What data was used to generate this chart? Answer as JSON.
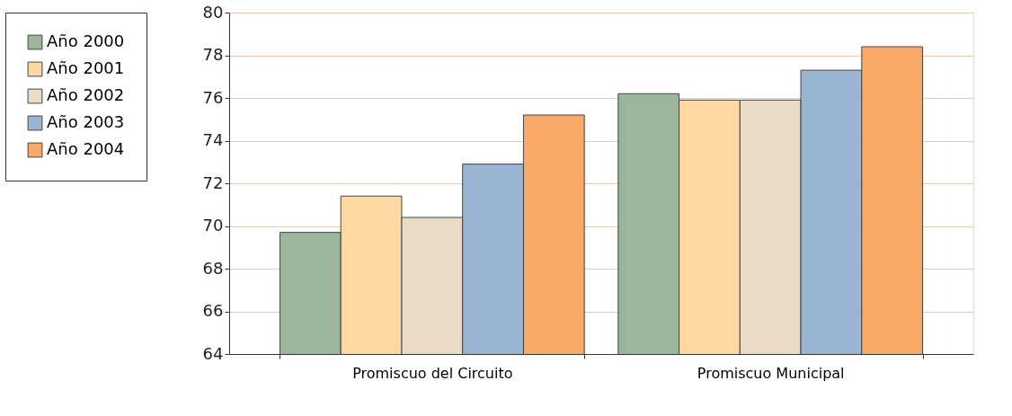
{
  "chart_data": {
    "type": "bar",
    "categories": [
      "Promiscuo del Circuito",
      "Promiscuo Municipal"
    ],
    "series": [
      {
        "name": "Año 2000",
        "color": "#9db59b",
        "values": [
          69.7,
          76.2
        ]
      },
      {
        "name": "Año 2001",
        "color": "#fed8a0",
        "values": [
          71.4,
          75.9
        ]
      },
      {
        "name": "Año 2002",
        "color": "#e9dbc5",
        "values": [
          70.4,
          75.9
        ]
      },
      {
        "name": "Año 2003",
        "color": "#99b5d2",
        "values": [
          72.9,
          77.3
        ]
      },
      {
        "name": "Año 2004",
        "color": "#f8a967",
        "values": [
          75.2,
          78.4
        ]
      }
    ],
    "ylim": [
      64,
      80
    ],
    "yticks": [
      64,
      66,
      68,
      70,
      72,
      74,
      76,
      78,
      80
    ],
    "grid": "y",
    "legend": "left"
  }
}
